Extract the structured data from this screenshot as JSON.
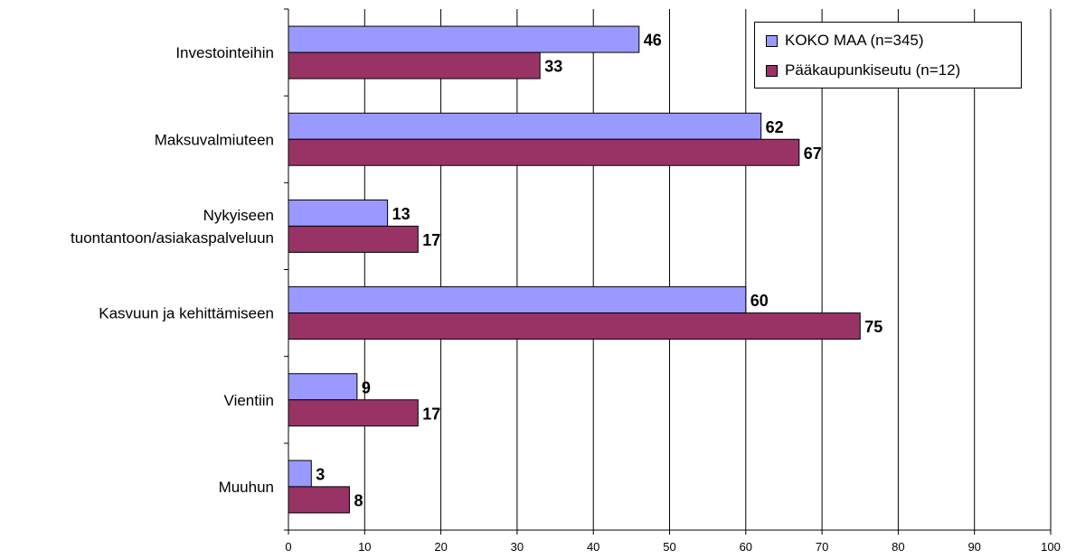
{
  "chart_data": {
    "type": "bar",
    "orientation": "horizontal",
    "categories": [
      [
        "Investointeihin"
      ],
      [
        "Maksuvalmiuteen"
      ],
      [
        "Nykyiseen",
        "tuontantoon/asiakaspalveluun"
      ],
      [
        "Kasvuun ja kehittämiseen"
      ],
      [
        "Vientiin"
      ],
      [
        "Muuhun"
      ]
    ],
    "series": [
      {
        "name": "KOKO MAA (n=345)",
        "color": "#9999ff",
        "values": [
          46,
          62,
          13,
          60,
          9,
          3
        ]
      },
      {
        "name": "Pääkaupunkiseutu (n=12)",
        "color": "#993366",
        "values": [
          33,
          67,
          17,
          75,
          17,
          8
        ]
      }
    ],
    "xlim": [
      0,
      100
    ],
    "xticks": [
      0,
      10,
      20,
      30,
      40,
      50,
      60,
      70,
      80,
      90,
      100
    ],
    "grid": "vertical",
    "legend_position": "top-right",
    "data_labels": true
  }
}
